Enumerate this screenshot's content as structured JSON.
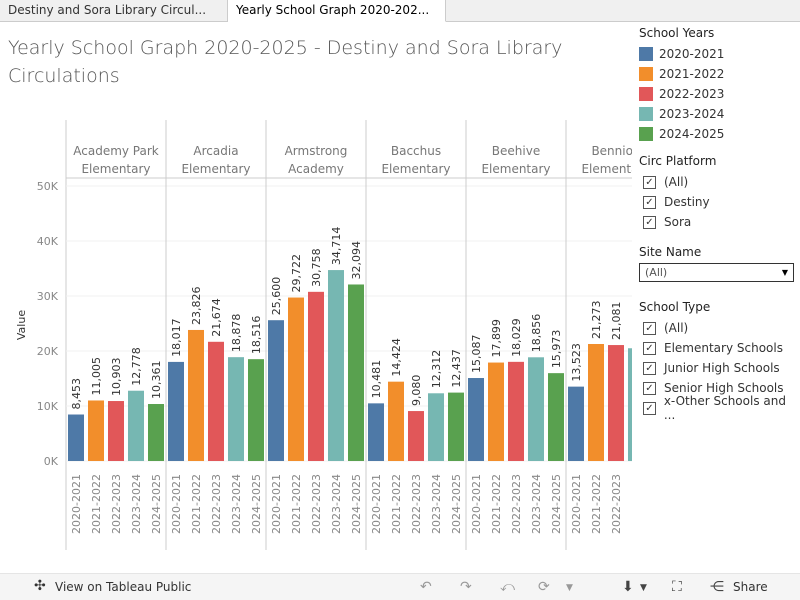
{
  "tabs": [
    "Destiny and Sora Library Circul...",
    "Yearly School Graph 2020-202..."
  ],
  "title": "Yearly School Graph 2020-2025 - Destiny and Sora Library Circulations",
  "legend": {
    "title": "School Years",
    "items": [
      {
        "label": "2020-2021",
        "color": "#4e79a7"
      },
      {
        "label": "2021-2022",
        "color": "#f28e2b"
      },
      {
        "label": "2022-2023",
        "color": "#e15759"
      },
      {
        "label": "2023-2024",
        "color": "#76b7b2"
      },
      {
        "label": "2024-2025",
        "color": "#59a14f"
      }
    ]
  },
  "circ_platform": {
    "title": "Circ Platform",
    "items": [
      "(All)",
      "Destiny",
      "Sora"
    ]
  },
  "site_name": {
    "title": "Site Name",
    "value": "(All)"
  },
  "school_type": {
    "title": "School Type",
    "items": [
      "(All)",
      "Elementary Schools",
      "Junior High Schools",
      "Senior High Schools",
      "x-Other Schools and ..."
    ]
  },
  "footer": {
    "view_label": "View on Tableau Public",
    "share_label": "Share"
  },
  "chart_data": {
    "type": "bar",
    "ylabel": "Value",
    "ylim": [
      0,
      50000
    ],
    "yticks": [
      "0K",
      "10K",
      "20K",
      "30K",
      "40K",
      "50K"
    ],
    "categories": [
      "2020-2021",
      "2021-2022",
      "2022-2023",
      "2023-2024",
      "2024-2025"
    ],
    "panels": [
      {
        "name": "Academy Park Elementary",
        "lines": [
          "Academy Park",
          "Elementary"
        ],
        "values": [
          8453,
          11005,
          10903,
          12778,
          10361
        ]
      },
      {
        "name": "Arcadia Elementary",
        "lines": [
          "Arcadia",
          "Elementary"
        ],
        "values": [
          18017,
          23826,
          21674,
          18878,
          18516
        ]
      },
      {
        "name": "Armstrong Academy",
        "lines": [
          "Armstrong",
          "Academy"
        ],
        "values": [
          25600,
          29722,
          30758,
          34714,
          32094
        ]
      },
      {
        "name": "Bacchus Elementary",
        "lines": [
          "Bacchus",
          "Elementary"
        ],
        "values": [
          10481,
          14424,
          9080,
          12312,
          12437
        ]
      },
      {
        "name": "Beehive Elementary",
        "lines": [
          "Beehive",
          "Elementary"
        ],
        "values": [
          15087,
          17899,
          18029,
          18856,
          15973
        ]
      },
      {
        "name": "Bennion Elementary",
        "lines": [
          "Bennion",
          "Elementary"
        ],
        "values": [
          13523,
          21273,
          21081,
          null,
          null
        ]
      }
    ]
  }
}
